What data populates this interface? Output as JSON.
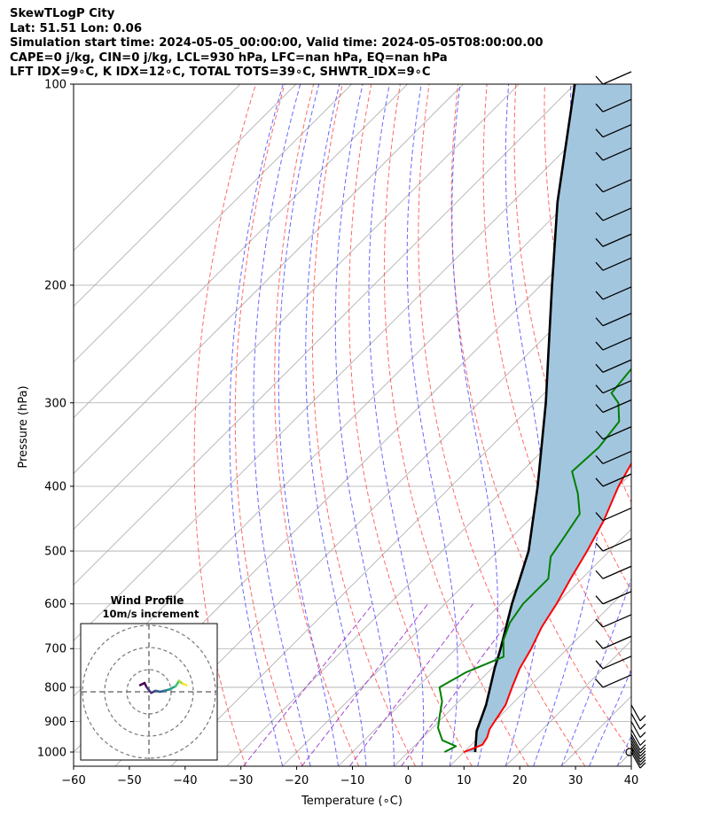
{
  "header": {
    "lines": [
      "SkewTLogP City",
      "Lat: 51.51   Lon: 0.06",
      "Simulation start time: 2024-05-05_00:00:00, Valid time: 2024-05-05T08:00:00.00",
      "CAPE=0 j/kg, CIN=0 j/kg, LCL=930 hPa, LFC=nan hPa, EQ=nan hPa",
      "LFT IDX=9∘C, K IDX=12∘C, TOTAL TOTS=39∘C, SHWTR_IDX=9∘C"
    ]
  },
  "chart_data": {
    "type": "line",
    "subtype": "skewt-logp",
    "xlabel": "Temperature (∘C)",
    "ylabel": "Pressure (hPa)",
    "xlim": [
      -60,
      40
    ],
    "ylim": [
      1050,
      100
    ],
    "y_scale": "log",
    "x_ticks": [
      "−60",
      "−50",
      "−40",
      "−30",
      "−20",
      "−10",
      "0",
      "10",
      "20",
      "30",
      "40"
    ],
    "y_ticks": [
      "100",
      "200",
      "300",
      "400",
      "500",
      "600",
      "700",
      "800",
      "900",
      "1000"
    ],
    "colors": {
      "temperature": "#ff0000",
      "dewpoint": "#008000",
      "parcel": "#000000",
      "cape_fill": "#a3c6df",
      "dry_adiabats": "#ff4d4d",
      "moist_adiabats": "#4d4dff",
      "mixing_ratio": "#9933cc",
      "isotherms": "#aaaaaa"
    },
    "series": [
      {
        "key": "temperature",
        "points": [
          [
            1000,
            10
          ],
          [
            975,
            12
          ],
          [
            950,
            11.5
          ],
          [
            925,
            10.5
          ],
          [
            900,
            10
          ],
          [
            850,
            9
          ],
          [
            800,
            7
          ],
          [
            750,
            5
          ],
          [
            700,
            3.5
          ],
          [
            650,
            1.5
          ],
          [
            600,
            0
          ],
          [
            550,
            -2
          ],
          [
            500,
            -4
          ],
          [
            450,
            -6.5
          ],
          [
            400,
            -10
          ],
          [
            350,
            -13
          ],
          [
            310,
            -17.5
          ],
          [
            280,
            -17.5
          ],
          [
            260,
            -17.5
          ],
          [
            240,
            -17.5
          ],
          [
            220,
            -16.5
          ],
          [
            200,
            -16.5
          ],
          [
            180,
            -13.5
          ],
          [
            170,
            -13
          ],
          [
            150,
            -13
          ],
          [
            130,
            -12
          ],
          [
            115,
            -12.5
          ],
          [
            100,
            -13.5
          ]
        ]
      },
      {
        "key": "dewpoint",
        "points": [
          [
            1000,
            6.5
          ],
          [
            980,
            7.5
          ],
          [
            960,
            4
          ],
          [
            920,
            1
          ],
          [
            880,
            -1
          ],
          [
            840,
            -3
          ],
          [
            800,
            -6
          ],
          [
            760,
            -4
          ],
          [
            720,
            0
          ],
          [
            680,
            -3
          ],
          [
            640,
            -5
          ],
          [
            600,
            -6
          ],
          [
            550,
            -6
          ],
          [
            510,
            -9.5
          ],
          [
            480,
            -10.5
          ],
          [
            440,
            -12
          ],
          [
            410,
            -16
          ],
          [
            380,
            -21
          ],
          [
            350,
            -20.5
          ],
          [
            320,
            -21.5
          ],
          [
            300,
            -25
          ],
          [
            290,
            -28
          ],
          [
            260,
            -29
          ],
          [
            230,
            -30
          ],
          [
            210,
            -31
          ],
          [
            195,
            -33
          ],
          [
            180,
            -37.5
          ],
          [
            170,
            -37
          ],
          [
            150,
            -38
          ],
          [
            130,
            -38
          ],
          [
            115,
            -37.5
          ],
          [
            100,
            -37.5
          ]
        ]
      },
      {
        "key": "parcel",
        "points": [
          [
            1000,
            12
          ],
          [
            930,
            8.5
          ],
          [
            850,
            5.5
          ],
          [
            750,
            0.5
          ],
          [
            700,
            -2
          ],
          [
            600,
            -8
          ],
          [
            500,
            -14.5
          ],
          [
            400,
            -24.5
          ],
          [
            300,
            -38
          ],
          [
            250,
            -47
          ],
          [
            200,
            -58
          ],
          [
            150,
            -72
          ],
          [
            100,
            -90
          ]
        ]
      }
    ],
    "wind_barbs_pressure_hpa": [
      1000,
      990,
      980,
      970,
      960,
      950,
      940,
      925,
      900,
      875,
      850,
      800,
      750,
      700,
      650,
      600,
      550,
      500,
      450,
      400,
      370,
      340,
      310,
      290,
      270,
      250,
      230,
      210,
      190,
      175,
      160,
      145,
      130,
      120,
      110,
      100
    ],
    "inset": {
      "title": "Wind Profile",
      "subtitle": "10m/s increment",
      "hodograph": [
        [
          -0.4,
          0.3
        ],
        [
          -0.2,
          0.4
        ],
        [
          -0.1,
          0.2
        ],
        [
          0.1,
          -0.05
        ],
        [
          0.3,
          0.05
        ],
        [
          0.5,
          0
        ],
        [
          0.7,
          0.05
        ],
        [
          0.9,
          0.1
        ],
        [
          1,
          0.15
        ],
        [
          1.2,
          0.25
        ],
        [
          1.3,
          0.4
        ],
        [
          1.35,
          0.5
        ],
        [
          1.4,
          0.45
        ],
        [
          1.55,
          0.35
        ],
        [
          1.7,
          0.3
        ]
      ]
    }
  }
}
